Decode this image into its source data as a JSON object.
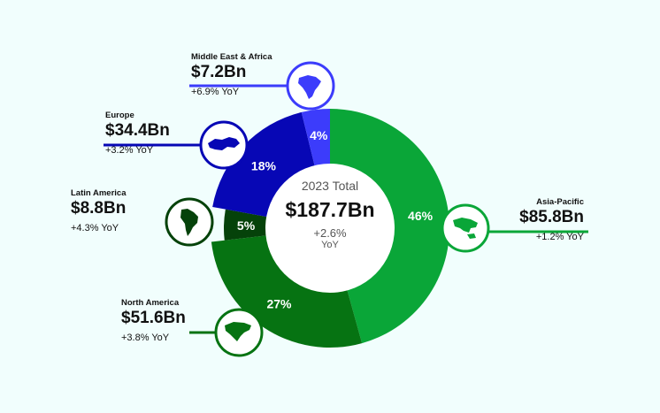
{
  "chart_data": {
    "type": "pie",
    "slices": [
      {
        "region": "Asia-Pacific",
        "value": 85.8,
        "value_label": "$85.8Bn",
        "percent_label": "46%",
        "yoy": "+1.2% YoY",
        "color": "#0aa638",
        "icon": "asia-pacific-map-icon"
      },
      {
        "region": "North America",
        "value": 51.6,
        "value_label": "$51.6Bn",
        "percent_label": "27%",
        "yoy": "+3.8% YoY",
        "color": "#067312",
        "icon": "north-america-map-icon"
      },
      {
        "region": "Latin America",
        "value": 8.8,
        "value_label": "$8.8Bn",
        "percent_label": "5%",
        "yoy": "+4.3% YoY",
        "color": "#05420a",
        "icon": "latin-america-map-icon"
      },
      {
        "region": "Europe",
        "value": 34.4,
        "value_label": "$34.4Bn",
        "percent_label": "18%",
        "yoy": "+3.2% YoY",
        "color": "#0707b5",
        "icon": "europe-map-icon"
      },
      {
        "region": "Middle East & Africa",
        "value": 7.2,
        "value_label": "$7.2Bn",
        "percent_label": "4%",
        "yoy": "+6.9% YoY",
        "color": "#3c3cfb",
        "icon": "middle-east-africa-map-icon"
      }
    ],
    "center": {
      "line1": "2023 Total",
      "total": "$187.7Bn",
      "growth": "+2.6%",
      "growth_unit": "YoY"
    }
  }
}
